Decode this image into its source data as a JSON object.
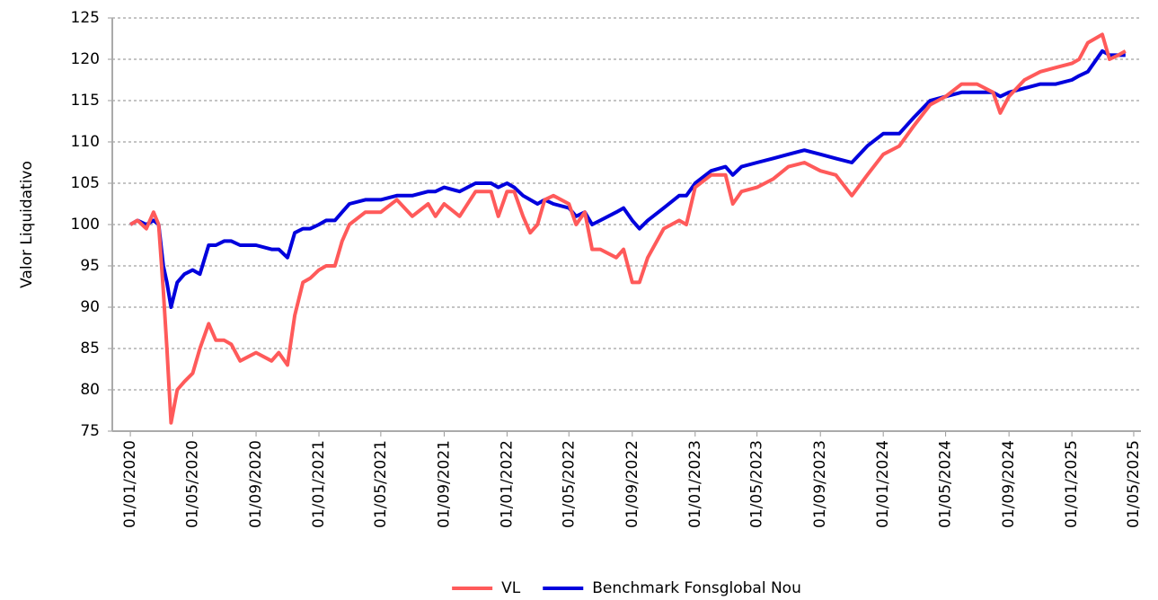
{
  "chart_data": {
    "type": "line",
    "y_label": "Valor Liquidativo",
    "x": [
      "01/01/2020",
      "15/01/2020",
      "01/02/2020",
      "15/02/2020",
      "25/02/2020",
      "05/03/2020",
      "12/03/2020",
      "20/03/2020",
      "01/04/2020",
      "15/04/2020",
      "01/05/2020",
      "15/05/2020",
      "01/06/2020",
      "15/06/2020",
      "01/07/2020",
      "15/07/2020",
      "01/08/2020",
      "01/09/2020",
      "01/10/2020",
      "15/10/2020",
      "01/11/2020",
      "15/11/2020",
      "01/12/2020",
      "15/12/2020",
      "01/01/2021",
      "15/01/2021",
      "01/02/2021",
      "15/02/2021",
      "01/03/2021",
      "01/04/2021",
      "01/05/2021",
      "01/06/2021",
      "01/07/2021",
      "01/08/2021",
      "15/08/2021",
      "01/09/2021",
      "01/10/2021",
      "01/11/2021",
      "01/12/2021",
      "15/12/2021",
      "01/01/2022",
      "15/01/2022",
      "01/02/2022",
      "15/02/2022",
      "01/03/2022",
      "15/03/2022",
      "01/04/2022",
      "01/05/2022",
      "15/05/2022",
      "01/06/2022",
      "15/06/2022",
      "01/07/2022",
      "01/08/2022",
      "15/08/2022",
      "01/09/2022",
      "15/09/2022",
      "01/10/2022",
      "01/11/2022",
      "01/12/2022",
      "15/12/2022",
      "01/01/2023",
      "01/02/2023",
      "01/03/2023",
      "15/03/2023",
      "01/04/2023",
      "01/05/2023",
      "01/06/2023",
      "01/07/2023",
      "01/08/2023",
      "01/09/2023",
      "01/10/2023",
      "01/11/2023",
      "01/12/2023",
      "01/01/2024",
      "01/02/2024",
      "01/03/2024",
      "01/04/2024",
      "01/05/2024",
      "01/06/2024",
      "01/07/2024",
      "01/08/2024",
      "15/08/2024",
      "01/09/2024",
      "01/10/2024",
      "01/11/2024",
      "01/12/2024",
      "01/01/2025",
      "15/01/2025",
      "01/02/2025",
      "01/03/2025",
      "15/03/2025",
      "01/04/2025",
      "15/04/2025"
    ],
    "series": [
      {
        "name": "VL",
        "color": "#ff5a5a",
        "values": [
          100,
          100.5,
          99.5,
          101.5,
          100,
          92,
          85,
          76,
          80,
          81,
          82,
          85,
          88,
          86,
          86,
          85.5,
          83.5,
          84.5,
          83.5,
          84.5,
          83,
          89,
          93,
          93.5,
          94.5,
          95,
          95,
          98,
          100,
          101.5,
          101.5,
          103,
          101,
          102.5,
          101,
          102.5,
          101,
          104,
          104,
          101,
          104,
          104,
          101,
          99,
          100,
          103,
          103.5,
          102.5,
          100,
          101.5,
          97,
          97,
          96,
          97,
          93,
          93,
          96,
          99.5,
          100.5,
          100,
          104.5,
          106,
          106,
          102.5,
          104,
          104.5,
          105.5,
          107,
          107.5,
          106.5,
          106,
          103.5,
          106,
          108.5,
          109.5,
          112,
          114.5,
          115.5,
          117,
          117,
          116,
          113.5,
          115.5,
          117.5,
          118.5,
          119,
          119.5,
          120,
          122,
          123,
          120,
          120.5,
          121
        ]
      },
      {
        "name": "Benchmark Fonsglobal Nou",
        "color": "#0000dd",
        "values": [
          100,
          100.5,
          100,
          100.5,
          100,
          95,
          93,
          90,
          93,
          94,
          94.5,
          94,
          97.5,
          97.5,
          98,
          98,
          97.5,
          97.5,
          97,
          97,
          96,
          99,
          99.5,
          99.5,
          100,
          100.5,
          100.5,
          101.5,
          102.5,
          103,
          103,
          103.5,
          103.5,
          104,
          104,
          104.5,
          104,
          105,
          105,
          104.5,
          105,
          104.5,
          103.5,
          103,
          102.5,
          103,
          102.5,
          102,
          101,
          101.5,
          100,
          100.5,
          101.5,
          102,
          100.5,
          99.5,
          100.5,
          102,
          103.5,
          103.5,
          105,
          106.5,
          107,
          106,
          107,
          107.5,
          108,
          108.5,
          109,
          108.5,
          108,
          107.5,
          109.5,
          111,
          111,
          113,
          115,
          115.5,
          116,
          116,
          116,
          115.5,
          116,
          116.5,
          117,
          117,
          117.5,
          118,
          118.5,
          121,
          120.5,
          120.5,
          120.5
        ]
      }
    ],
    "xlim": [
      "27/11/2019",
      "15/05/2025"
    ],
    "xticks": [
      "01/01/2020",
      "01/05/2020",
      "01/09/2020",
      "01/01/2021",
      "01/05/2021",
      "01/09/2021",
      "01/01/2022",
      "01/05/2022",
      "01/09/2022",
      "01/01/2023",
      "01/05/2023",
      "01/09/2023",
      "01/01/2024",
      "01/05/2024",
      "01/09/2024",
      "01/01/2025",
      "01/05/2025"
    ],
    "ylim": [
      75,
      125
    ],
    "yticks": [
      75,
      80,
      85,
      90,
      95,
      100,
      105,
      110,
      115,
      120,
      125
    ],
    "grid": true,
    "legend": "bottom"
  }
}
